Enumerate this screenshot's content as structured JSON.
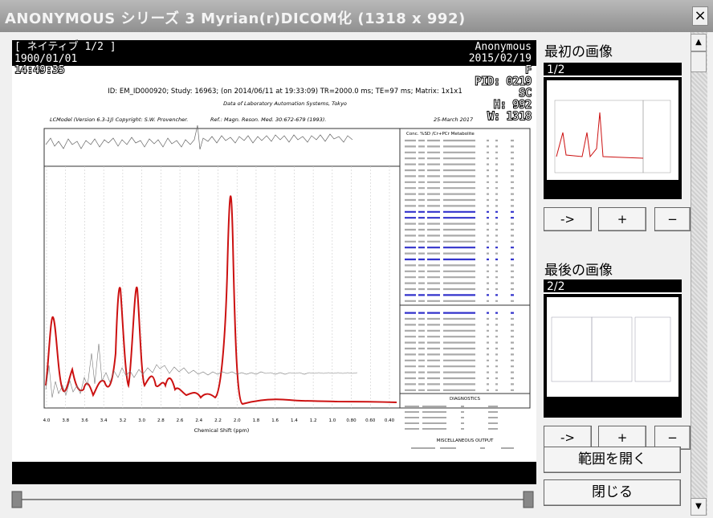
{
  "window": {
    "title": "ANONYMOUS シリーズ 3 Myrian(r)DICOM化 (1318 x 992)",
    "close": "×"
  },
  "viewer": {
    "overlay": {
      "top_left": [
        "[ ネイティブ 1/2 ]",
        "1900/01/01",
        "14:49:35"
      ],
      "top_right": [
        "Anonymous",
        "2015/02/19",
        "F",
        "PID: 0219",
        "SC",
        "H: 992",
        "W: 1318"
      ]
    },
    "report": {
      "header": "ID: EM_ID000920; Study: 16963; (on 2014/06/11 at 19:33:09) TR=2000.0 ms; TE=97 ms; Matrix: 1x1x1",
      "subheader": "Data of Laboratory Automation Systems, Tokyo",
      "software": "LCModel (Version 6.3-1J) Copyright: S.W. Provencher.",
      "reference": "Ref.: Magn. Reson. Med. 30:672-679 (1993).",
      "date": "25-March 2017",
      "table_header": "Conc.  %SD /Cr+PCr  Metabolite",
      "diagnostics": "DIAGNOSTICS",
      "misc": "MISCELLANEOUS OUTPUT",
      "x_axis_label": "Chemical Shift (ppm)",
      "x_ticks": [
        "4.0",
        "3.8",
        "3.6",
        "3.4",
        "3.2",
        "3.0",
        "2.8",
        "2.6",
        "2.4",
        "2.2",
        "2.0",
        "1.8",
        "1.6",
        "1.4",
        "1.2",
        "1.0",
        "0.80",
        "0.60",
        "0.40"
      ]
    }
  },
  "panel": {
    "first": {
      "label": "最初の画像",
      "index": "1/2"
    },
    "last": {
      "label": "最後の画像",
      "index": "2/2"
    },
    "buttons": [
      "->",
      "+",
      "−"
    ],
    "open_range": "範囲を開く",
    "close": "閉じる"
  }
}
